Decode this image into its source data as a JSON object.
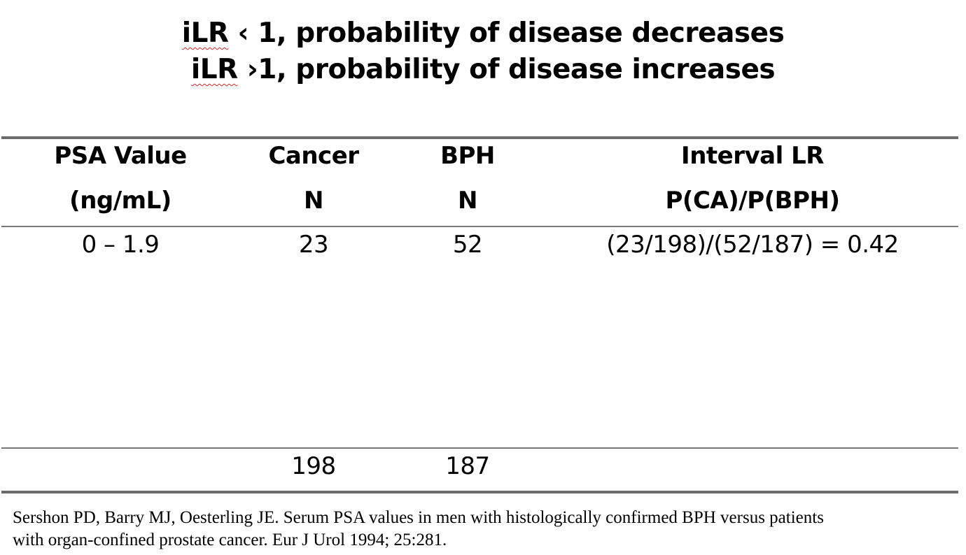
{
  "title": {
    "line1_prefix": "iLR",
    "line1_rest": " ‹ 1, probability of disease decreases",
    "line2_prefix": "iLR",
    "line2_rest": " ›1, probability of disease increases"
  },
  "table": {
    "headers": [
      {
        "line1": "PSA Value",
        "line2": "(ng/mL)"
      },
      {
        "line1": "Cancer",
        "line2": "N"
      },
      {
        "line1": "BPH",
        "line2": "N"
      },
      {
        "line1": "Interval LR",
        "line2": "P(CA)/P(BPH)"
      }
    ],
    "rows": [
      [
        "0 – 1.9",
        "23",
        "52",
        "(23/198)/(52/187) = 0.42"
      ]
    ],
    "totals": [
      "",
      "198",
      "187",
      ""
    ]
  },
  "citation": "Sershon PD, Barry MJ, Oesterling JE.  Serum PSA values in men with histologically confirmed BPH versus patients\nwith organ-confined prostate cancer.  Eur J Urol 1994; 25:281."
}
